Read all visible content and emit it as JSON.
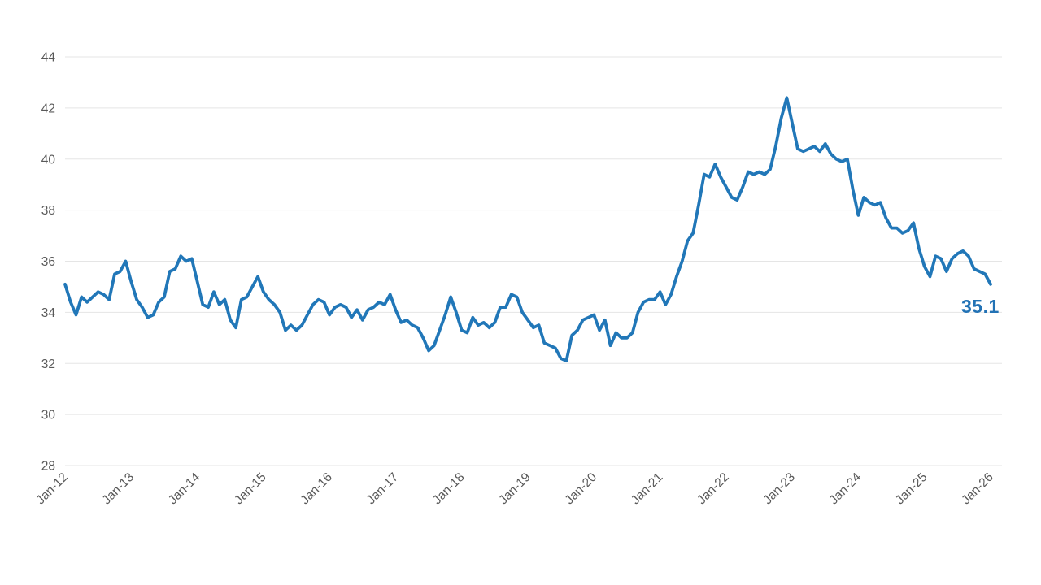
{
  "chart_data": {
    "type": "line",
    "title": "",
    "xlabel": "",
    "ylabel": "",
    "ylim": [
      28,
      44
    ],
    "y_ticks": [
      28,
      30,
      32,
      34,
      36,
      38,
      40,
      42,
      44
    ],
    "x_tick_labels": [
      "Jan-12",
      "Jan-13",
      "Jan-14",
      "Jan-15",
      "Jan-16",
      "Jan-17",
      "Jan-18",
      "Jan-19",
      "Jan-20",
      "Jan-21",
      "Jan-22",
      "Jan-23",
      "Jan-24",
      "Jan-25",
      "Jan-26"
    ],
    "frequency": "monthly",
    "x_start": "Jan-12",
    "x_end": "Jan-26",
    "grid": "horizontal-only",
    "legend_position": "none",
    "series": [
      {
        "name": "value",
        "color": "#2177b8",
        "values": [
          35.1,
          34.4,
          33.9,
          34.6,
          34.4,
          34.6,
          34.8,
          34.7,
          34.5,
          35.5,
          35.6,
          36.0,
          35.2,
          34.5,
          34.2,
          33.8,
          33.9,
          34.4,
          34.6,
          35.6,
          35.7,
          36.2,
          36.0,
          36.1,
          35.2,
          34.3,
          34.2,
          34.8,
          34.3,
          34.5,
          33.7,
          33.4,
          34.5,
          34.6,
          35.0,
          35.4,
          34.8,
          34.5,
          34.3,
          34.0,
          33.3,
          33.5,
          33.3,
          33.5,
          33.9,
          34.3,
          34.5,
          34.4,
          33.9,
          34.2,
          34.3,
          34.2,
          33.8,
          34.1,
          33.7,
          34.1,
          34.2,
          34.4,
          34.3,
          34.7,
          34.1,
          33.6,
          33.7,
          33.5,
          33.4,
          33.0,
          32.5,
          32.7,
          33.3,
          33.9,
          34.6,
          34.0,
          33.3,
          33.2,
          33.8,
          33.5,
          33.6,
          33.4,
          33.6,
          34.2,
          34.2,
          34.7,
          34.6,
          34.0,
          33.7,
          33.4,
          33.5,
          32.8,
          32.7,
          32.6,
          32.2,
          32.1,
          33.1,
          33.3,
          33.7,
          33.8,
          33.9,
          33.3,
          33.7,
          32.7,
          33.2,
          33.0,
          33.0,
          33.2,
          34.0,
          34.4,
          34.5,
          34.5,
          34.8,
          34.3,
          34.7,
          35.4,
          36.0,
          36.8,
          37.1,
          38.2,
          39.4,
          39.3,
          39.8,
          39.3,
          38.9,
          38.5,
          38.4,
          38.9,
          39.5,
          39.4,
          39.5,
          39.4,
          39.6,
          40.5,
          41.6,
          42.4,
          41.4,
          40.4,
          40.3,
          40.4,
          40.5,
          40.3,
          40.6,
          40.2,
          40.0,
          39.9,
          40.0,
          38.8,
          37.8,
          38.5,
          38.3,
          38.2,
          38.3,
          37.7,
          37.3,
          37.3,
          37.1,
          37.2,
          37.5,
          36.5,
          35.8,
          35.4,
          36.2,
          36.1,
          35.6,
          36.1,
          36.3,
          36.4,
          36.2,
          35.7,
          35.6,
          35.5,
          35.1
        ]
      }
    ],
    "last_value_label": {
      "text": "35.1",
      "color": "#2272b5"
    }
  },
  "style_colors": {
    "gridline": "#e5e5e5",
    "tick_text": "#595959",
    "background": "#ffffff"
  }
}
